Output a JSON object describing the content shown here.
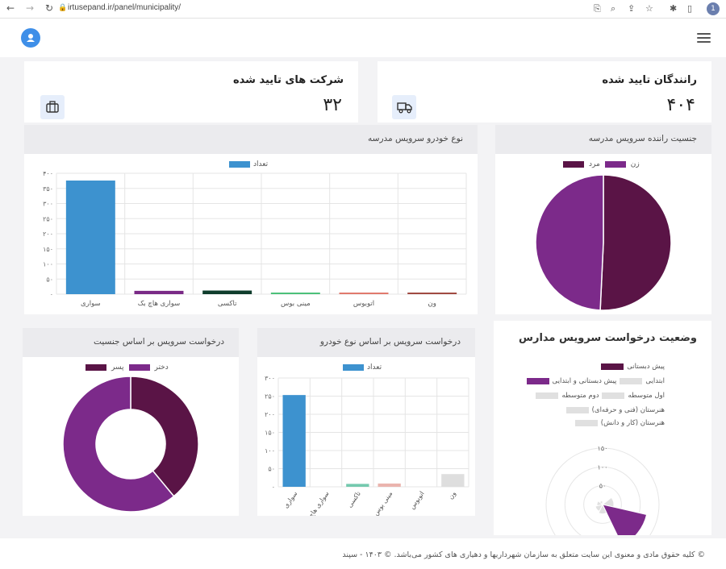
{
  "browser": {
    "url": "irtusepand.ir/panel/municipality/",
    "profile_initial": "1"
  },
  "stats": [
    {
      "title": "رانندگان تایید شده",
      "value": "۴۰۴",
      "icon": "truck-icon"
    },
    {
      "title": "شرکت های تایید شده",
      "value": "۳۲",
      "icon": "briefcase-icon"
    }
  ],
  "panels": {
    "vehicle_type": {
      "title": "نوع خودرو سرویس مدرسه"
    },
    "driver_gender": {
      "title": "جنسیت راننده سرویس مدرسه"
    },
    "gender_requests": {
      "title": "درخواست سرویس بر اساس جنسیت"
    },
    "vehicle_requests": {
      "title": "درخواست سرویس بر اساس نوع خودرو"
    },
    "school_status": {
      "title": "وضعیت درخواست سرویس مدارس"
    }
  },
  "chart_data": [
    {
      "type": "bar",
      "name": "vehicle_type",
      "categories": [
        "سواری",
        "سواری هاچ بک",
        "تاکسی",
        "مینی بوس",
        "اتوبوس",
        "ون"
      ],
      "series": [
        {
          "name": "تعداد",
          "values": [
            376,
            11,
            12,
            4,
            3,
            3
          ],
          "colors": [
            "#3d92cf",
            "#7a2a86",
            "#0f3d2c",
            "#4cc07a",
            "#e07a6d",
            "#a04a42"
          ]
        }
      ],
      "yticks": [
        "۰",
        "۵۰",
        "۱۰۰",
        "۱۵۰",
        "۲۰۰",
        "۲۵۰",
        "۳۰۰",
        "۳۵۰",
        "۴۰۰"
      ],
      "ylim": [
        0,
        400
      ],
      "legend": "top",
      "grid": true
    },
    {
      "type": "pie",
      "name": "driver_gender",
      "labels": [
        "مرد",
        "زن"
      ],
      "values": [
        205,
        199
      ],
      "colors": [
        "#5a1446",
        "#7c2a8a"
      ],
      "legend": "top"
    },
    {
      "type": "pie",
      "name": "gender_requests",
      "labels": [
        "پسر",
        "دختر"
      ],
      "values": [
        39,
        61
      ],
      "colors": [
        "#5a1446",
        "#7c2a8a"
      ],
      "donut": true,
      "legend": "top"
    },
    {
      "type": "bar",
      "name": "vehicle_requests",
      "categories": [
        "سواری",
        "سواری هاچ بک",
        "تاکسی",
        "مینی بوس",
        "اتوبوس",
        "ون"
      ],
      "series": [
        {
          "name": "تعداد",
          "values": [
            253,
            0,
            8,
            9,
            0,
            35
          ],
          "colors": [
            "#3d92cf",
            "#7a2a86",
            "#74c9ae",
            "#eab4ae",
            "#cccccc",
            "#dedede"
          ]
        }
      ],
      "yticks": [
        "۰",
        "۵۰",
        "۱۰۰",
        "۱۵۰",
        "۲۰۰",
        "۲۵۰",
        "۳۰۰"
      ],
      "ylim": [
        0,
        300
      ],
      "legend": "top",
      "grid": true
    },
    {
      "type": "polar-area",
      "name": "school_status",
      "labels": [
        "پیش دبستانی",
        "ابتدایی",
        "پیش دبستانی و ابتدایی",
        "اول متوسطه",
        "دوم متوسطه",
        "هنرستان (فنی و حرفه‌ای)",
        "هنرستان (کار و دانش)"
      ],
      "values": [
        0,
        30,
        120,
        25,
        20,
        15,
        10
      ],
      "colors": [
        "#5a1446",
        "#e0e0e0",
        "#7c2a8a",
        "#e0e0e0",
        "#e0e0e0",
        "#e0e0e0",
        "#e0e0e0"
      ],
      "rticks": [
        "۵۰",
        "۱۰۰",
        "۱۵۰"
      ],
      "rlim": [
        0,
        150
      ],
      "legend": "top"
    }
  ],
  "footer": {
    "text": "© کلیه حقوق مادی و معنوی این سایت متعلق به سازمان شهرداریها و دهیاری های کشور می‌باشد. © ۱۴۰۳ - سپند"
  }
}
